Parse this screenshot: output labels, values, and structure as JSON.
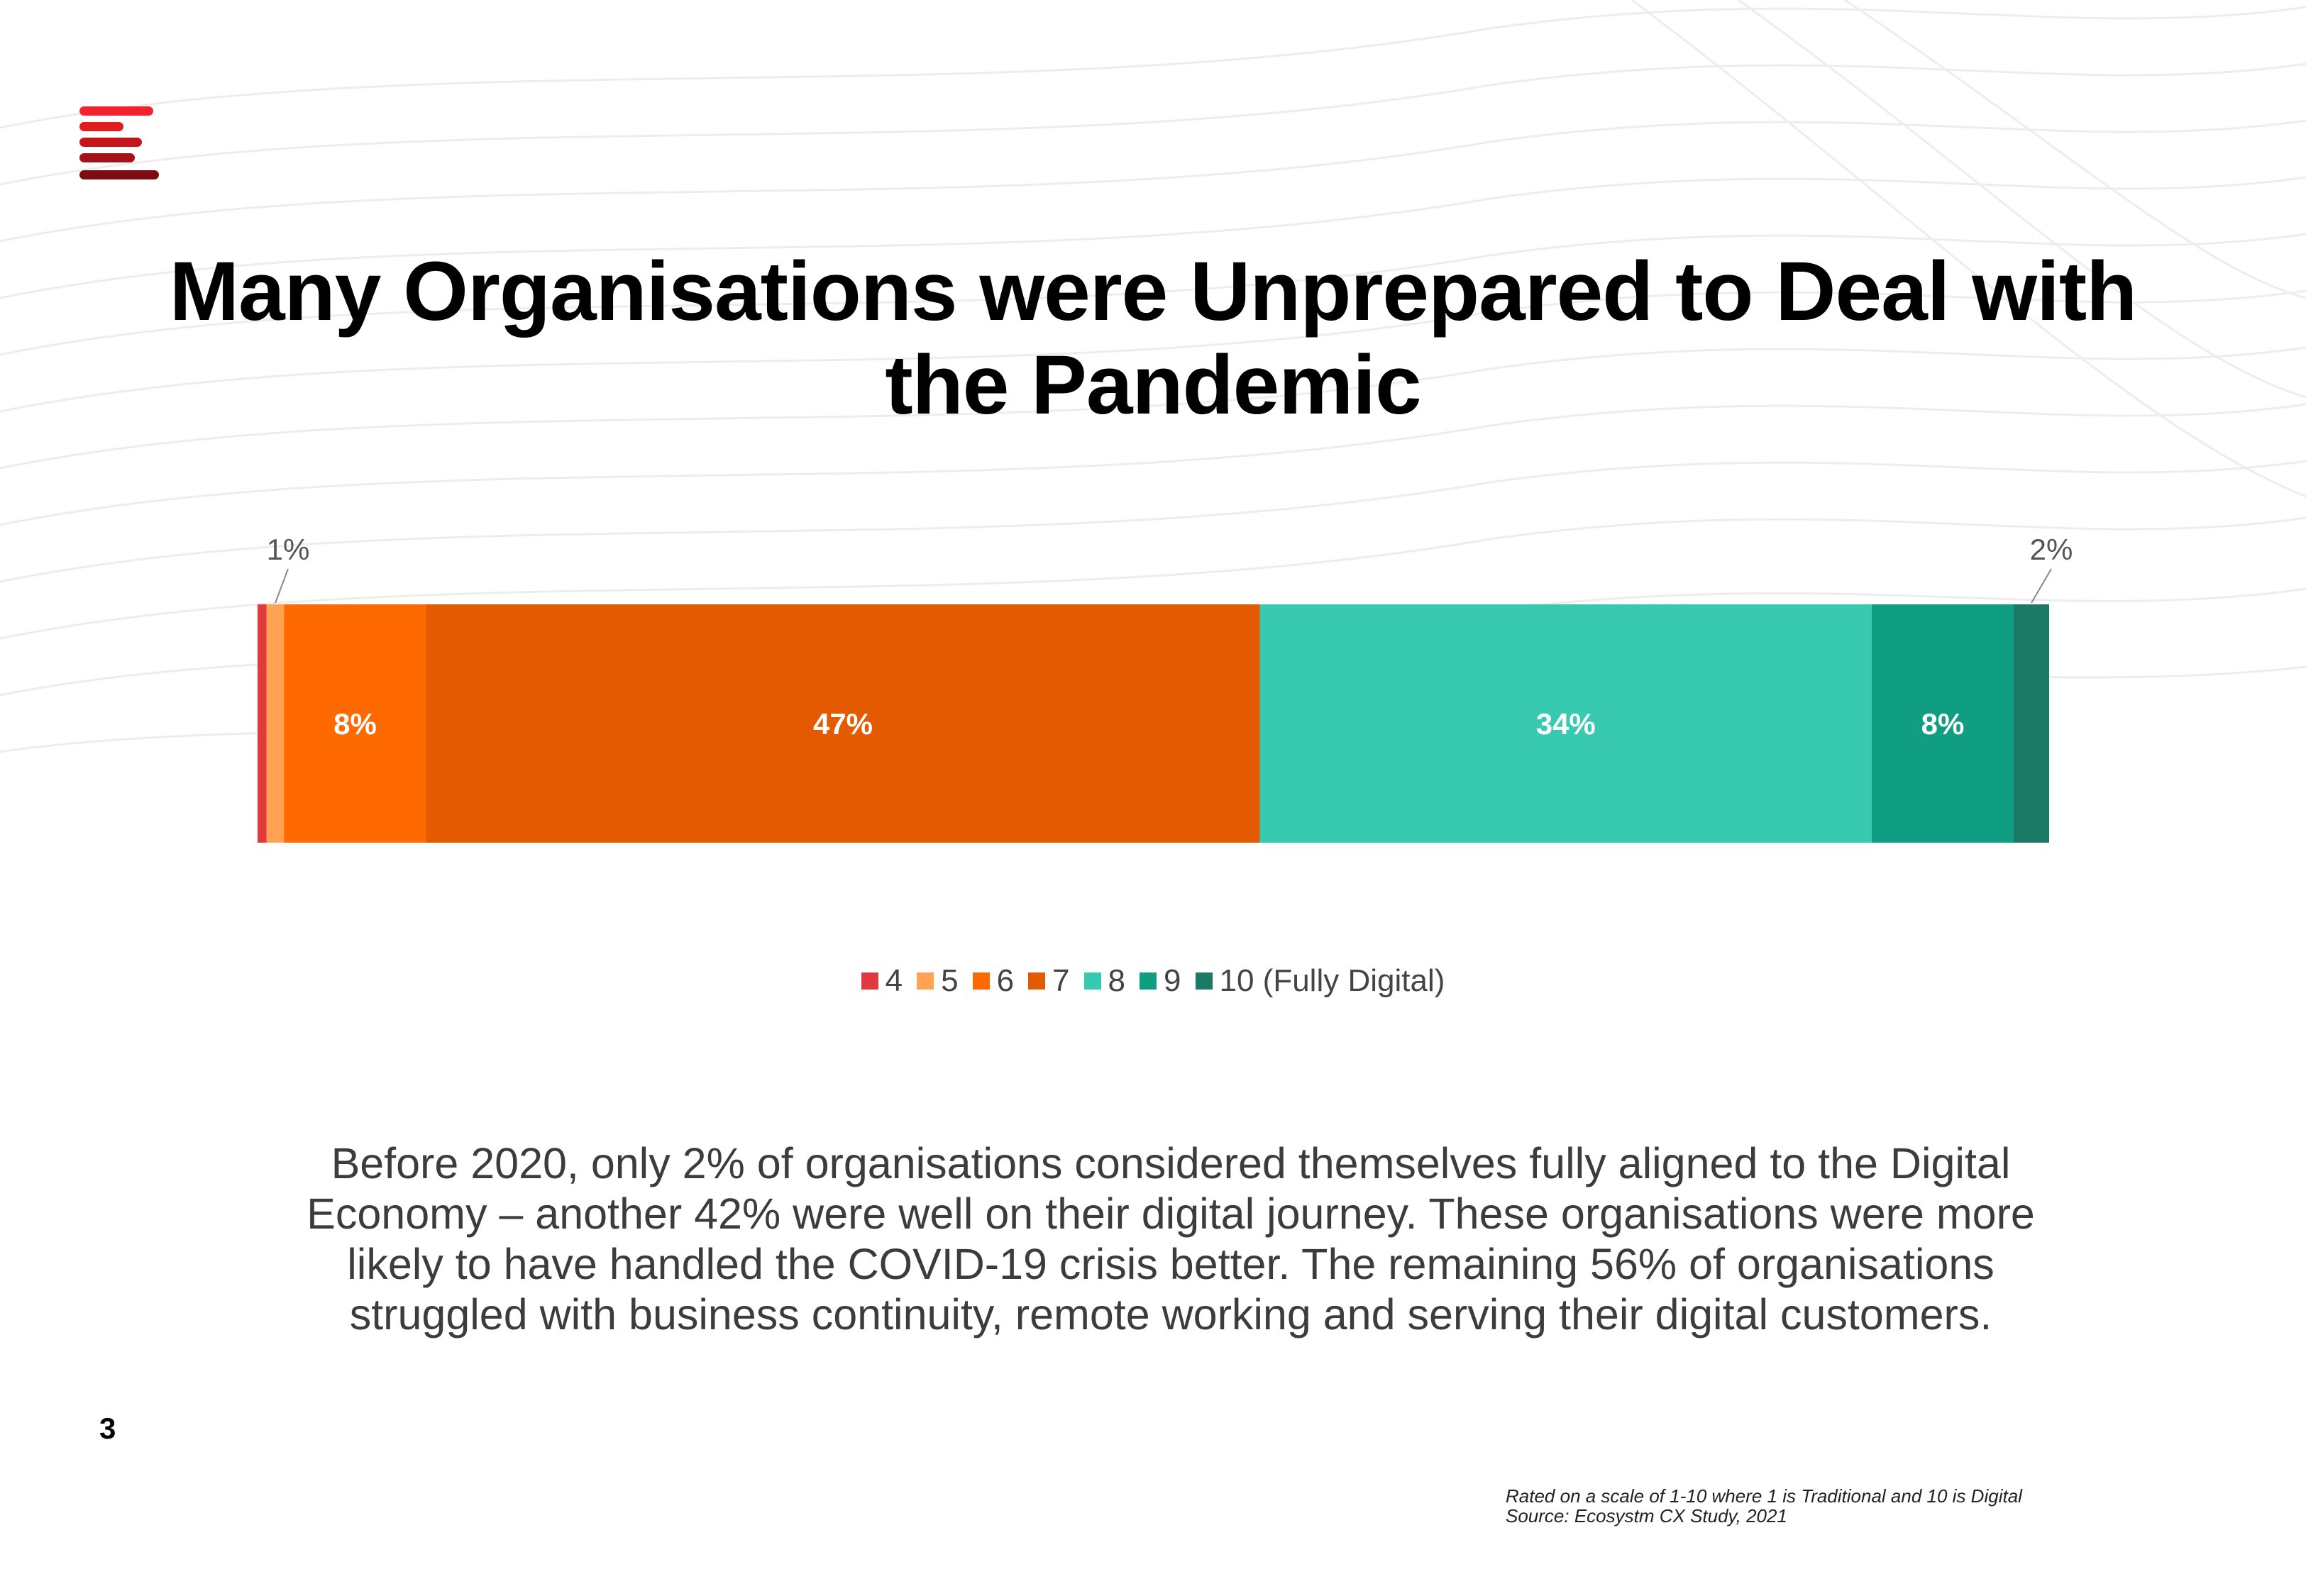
{
  "slide": {
    "title": "Many Organisations were Unprepared to Deal with the Pandemic",
    "body": "Before 2020, only 2% of organisations considered themselves fully aligned to the Digital Economy – another 42% were well on their digital journey. These organisations were more likely to have handled the COVID-19 crisis better. The remaining 56% of organisations struggled with business continuity, remote working and serving their digital customers.",
    "page_number": "3",
    "footnote_scale": "Rated on a scale of 1-10 where 1 is Traditional and 10 is Digital",
    "footnote_source": "Source: Ecosystm CX Study, 2021",
    "logo_colors": [
      "#f5222d",
      "#e01e1e",
      "#c4161c",
      "#a5121a",
      "#7d0c12"
    ]
  },
  "chart_data": {
    "type": "bar",
    "orientation": "horizontal",
    "stacked": true,
    "categories": [
      ""
    ],
    "series": [
      {
        "name": "4",
        "values": [
          0.5
        ],
        "color": "#e03a3e",
        "label": ""
      },
      {
        "name": "5",
        "values": [
          1
        ],
        "color": "#ffa352",
        "label": "1%"
      },
      {
        "name": "6",
        "values": [
          8
        ],
        "color": "#ff6a00",
        "label": "8%"
      },
      {
        "name": "7",
        "values": [
          47
        ],
        "color": "#e35a00",
        "label": "47%"
      },
      {
        "name": "8",
        "values": [
          34.5
        ],
        "color": "#38cab0",
        "label": "34%"
      },
      {
        "name": "9",
        "values": [
          8
        ],
        "color": "#0f9e82",
        "label": "8%"
      },
      {
        "name": "10 (Fully Digital)",
        "values": [
          2
        ],
        "color": "#1a7a66",
        "label": "2%"
      }
    ],
    "legend_position": "bottom",
    "grid": false
  }
}
